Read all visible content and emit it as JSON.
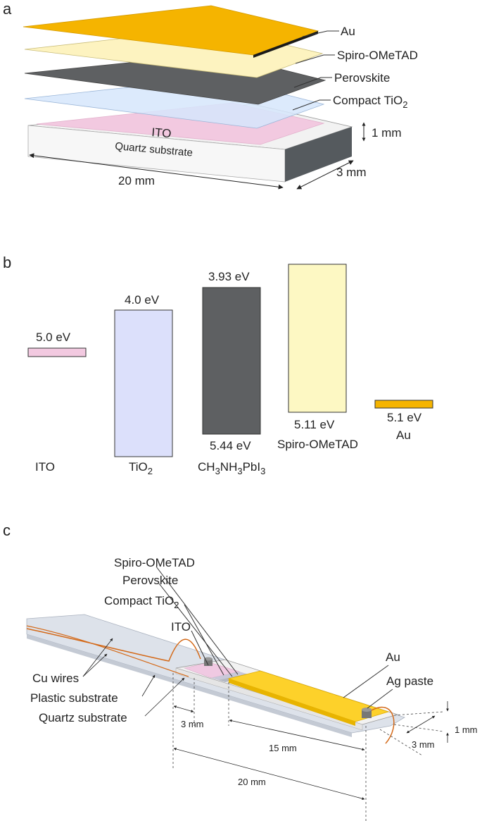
{
  "panel_a": {
    "label": "a",
    "layers": [
      {
        "name": "Au",
        "color": "#f5b400"
      },
      {
        "name": "Spiro-OMeTAD",
        "color": "#fdf3c0"
      },
      {
        "name": "Perovskite",
        "color": "#5e6062"
      },
      {
        "name": "Compact TiO",
        "sub": "2",
        "color": "#d6e6fb"
      },
      {
        "name": "ITO",
        "color": "#f2c9e0"
      }
    ],
    "substrate_label": "Quartz substrate",
    "dim_length": "20 mm",
    "dim_width": "3 mm",
    "dim_thickness": "1 mm"
  },
  "panel_b": {
    "label": "b",
    "materials": [
      {
        "top_label": "5.0 eV",
        "bottom_label": "",
        "name": "ITO",
        "color": "#f2c9e0"
      },
      {
        "top_label": "4.0 eV",
        "bottom_label": "",
        "name_main": "TiO",
        "name_sub": "2",
        "color": "#dce0fb"
      },
      {
        "top_label": "3.93 eV",
        "bottom_label": "5.44 eV",
        "name_html": "CH3NH3PbI3",
        "color": "#5e6062"
      },
      {
        "top_label": "",
        "bottom_label": "5.11 eV",
        "name": "Spiro-OMeTAD",
        "color": "#fdf8c3"
      },
      {
        "top_label": "",
        "bottom_label": "5.1 eV",
        "name": "Au",
        "color": "#f5b400"
      }
    ]
  },
  "panel_c": {
    "label": "c",
    "labels": {
      "spiro": "Spiro-OMeTAD",
      "perovskite": "Perovskite",
      "tio2_main": "Compact TiO",
      "tio2_sub": "2",
      "ito": "ITO",
      "cu_wires": "Cu wires",
      "plastic": "Plastic substrate",
      "quartz": "Quartz substrate",
      "au": "Au",
      "ag_paste": "Ag paste"
    },
    "dims": {
      "d3mm_left": "3 mm",
      "d15mm": "15 mm",
      "d20mm": "20 mm",
      "d3mm_right": "3 mm",
      "d1mm": "1 mm"
    }
  }
}
